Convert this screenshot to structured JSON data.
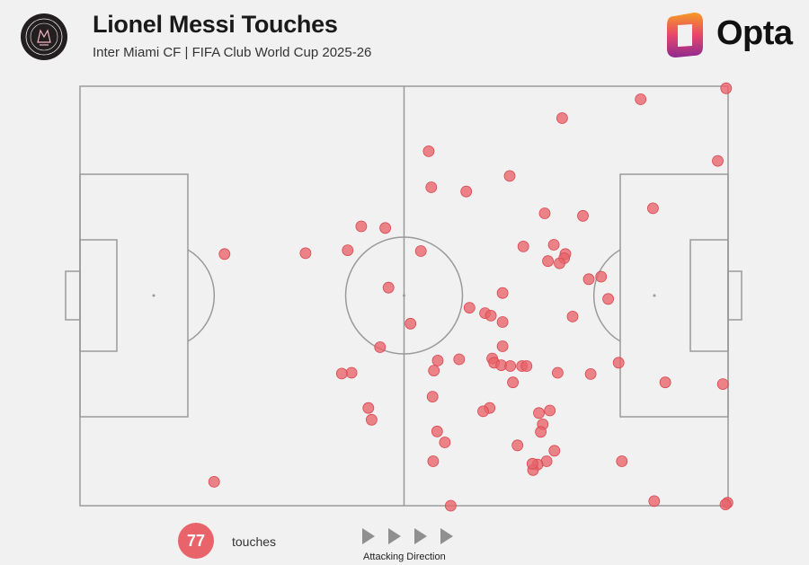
{
  "header": {
    "title": "Lionel Messi Touches",
    "subtitle": "Inter Miami CF | FIFA Club World Cup 2025-26",
    "brand": "Opta",
    "club_crest": "inter-miami-crest",
    "brand_icon": "opta-logo-mark"
  },
  "colors": {
    "touch": "#e8636a",
    "touch_stroke": "#d9464e",
    "pitch_line": "#9a9a9a",
    "background": "#f2f1f1",
    "opta_orange": "#f59b24",
    "opta_purple": "#8e2a8f"
  },
  "chart_data": {
    "type": "scatter",
    "x_range": [
      0,
      100
    ],
    "y_range": [
      0,
      100
    ],
    "x_meaning": "pitch length, attacking left to right",
    "y_meaning": "pitch width, 0 = bottom touchline",
    "points": [
      [
        99.7,
        99.5
      ],
      [
        86.5,
        96.9
      ],
      [
        74.4,
        92.4
      ],
      [
        98.4,
        82.2
      ],
      [
        53.8,
        84.5
      ],
      [
        66.3,
        78.6
      ],
      [
        54.2,
        75.9
      ],
      [
        59.6,
        74.9
      ],
      [
        88.4,
        70.9
      ],
      [
        71.7,
        69.7
      ],
      [
        77.6,
        69.1
      ],
      [
        47.1,
        66.2
      ],
      [
        68.4,
        61.8
      ],
      [
        73.1,
        62.2
      ],
      [
        74.9,
        60.0
      ],
      [
        74.7,
        59.0
      ],
      [
        72.2,
        58.3
      ],
      [
        74.0,
        57.8
      ],
      [
        80.4,
        54.6
      ],
      [
        78.5,
        54.0
      ],
      [
        34.8,
        60.2
      ],
      [
        41.3,
        60.9
      ],
      [
        43.4,
        66.6
      ],
      [
        52.6,
        60.7
      ],
      [
        22.3,
        60.0
      ],
      [
        65.2,
        50.7
      ],
      [
        81.5,
        49.3
      ],
      [
        47.6,
        52.0
      ],
      [
        60.1,
        47.2
      ],
      [
        62.5,
        45.9
      ],
      [
        63.4,
        45.3
      ],
      [
        65.2,
        43.8
      ],
      [
        76.0,
        45.1
      ],
      [
        51.0,
        43.4
      ],
      [
        46.3,
        37.8
      ],
      [
        65.2,
        38.0
      ],
      [
        63.6,
        35.1
      ],
      [
        58.5,
        34.9
      ],
      [
        63.9,
        34.1
      ],
      [
        65.0,
        33.5
      ],
      [
        66.4,
        33.3
      ],
      [
        68.2,
        33.3
      ],
      [
        68.9,
        33.3
      ],
      [
        83.1,
        34.1
      ],
      [
        41.9,
        31.7
      ],
      [
        40.4,
        31.5
      ],
      [
        55.2,
        34.6
      ],
      [
        54.6,
        32.2
      ],
      [
        73.7,
        31.7
      ],
      [
        78.8,
        31.4
      ],
      [
        66.8,
        29.4
      ],
      [
        90.3,
        29.4
      ],
      [
        99.2,
        29.0
      ],
      [
        54.4,
        26.0
      ],
      [
        44.5,
        23.3
      ],
      [
        63.2,
        23.3
      ],
      [
        62.2,
        22.5
      ],
      [
        72.5,
        22.7
      ],
      [
        70.8,
        22.1
      ],
      [
        45.0,
        20.5
      ],
      [
        71.4,
        19.4
      ],
      [
        55.1,
        17.7
      ],
      [
        71.1,
        17.6
      ],
      [
        56.3,
        15.1
      ],
      [
        67.5,
        14.4
      ],
      [
        73.2,
        13.1
      ],
      [
        72.0,
        10.6
      ],
      [
        54.5,
        10.6
      ],
      [
        70.6,
        9.8
      ],
      [
        69.9,
        8.5
      ],
      [
        83.6,
        10.6
      ],
      [
        69.8,
        10.0
      ],
      [
        20.7,
        5.7
      ],
      [
        57.2,
        0.0
      ],
      [
        88.6,
        1.1
      ],
      [
        99.9,
        0.7
      ],
      [
        99.6,
        0.3
      ]
    ]
  },
  "footer": {
    "touch_count": "77",
    "touch_label": "touches",
    "direction_label": "Attacking Direction"
  }
}
